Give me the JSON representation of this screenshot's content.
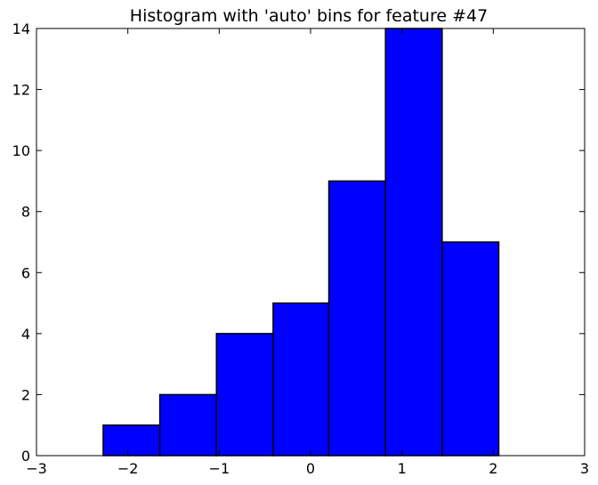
{
  "chart_data": {
    "type": "bar",
    "subtype": "histogram",
    "title": "Histogram with 'auto' bins for feature #47",
    "xlabel": "",
    "ylabel": "",
    "xlim": [
      -3,
      3
    ],
    "ylim": [
      0,
      14
    ],
    "bins": [
      {
        "start": -2.27,
        "end": -1.65,
        "count": 1
      },
      {
        "start": -1.65,
        "end": -1.03,
        "count": 2
      },
      {
        "start": -1.03,
        "end": -0.41,
        "count": 4
      },
      {
        "start": -0.41,
        "end": 0.2,
        "count": 5
      },
      {
        "start": 0.2,
        "end": 0.82,
        "count": 9
      },
      {
        "start": 0.82,
        "end": 1.44,
        "count": 14
      },
      {
        "start": 1.44,
        "end": 2.06,
        "count": 7
      }
    ],
    "x_ticks": [
      -3,
      -2,
      -1,
      0,
      1,
      2,
      3
    ],
    "y_ticks": [
      0,
      2,
      4,
      6,
      8,
      10,
      12,
      14
    ],
    "bar_color": "#0000ff",
    "edge_color": "#000000",
    "grid": false
  }
}
